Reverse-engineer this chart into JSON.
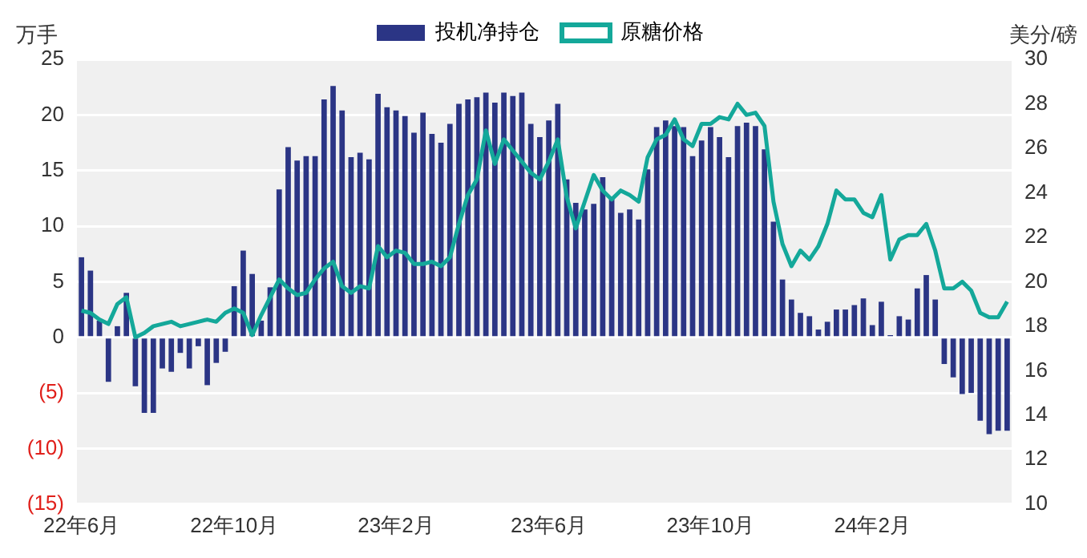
{
  "chart_data": {
    "type": "bar",
    "ylabel": "万手",
    "y2label": "美分/磅",
    "categories": [
      "22年6月",
      null,
      null,
      null,
      null,
      null,
      null,
      null,
      null,
      null,
      null,
      null,
      null,
      null,
      null,
      null,
      null,
      "22年10月",
      null,
      null,
      null,
      null,
      null,
      null,
      null,
      null,
      null,
      null,
      null,
      null,
      null,
      null,
      null,
      null,
      null,
      "23年2月",
      null,
      null,
      null,
      null,
      null,
      null,
      null,
      null,
      null,
      null,
      null,
      null,
      null,
      null,
      null,
      null,
      "23年6月",
      null,
      null,
      null,
      null,
      null,
      null,
      null,
      null,
      null,
      null,
      null,
      null,
      null,
      null,
      null,
      null,
      null,
      "23年10月",
      null,
      null,
      null,
      null,
      null,
      null,
      null,
      null,
      null,
      null,
      null,
      null,
      null,
      null,
      null,
      null,
      null,
      "24年2月",
      null,
      null,
      null,
      null,
      null,
      null,
      null,
      null,
      null,
      null,
      null,
      null,
      null,
      null,
      null
    ],
    "series": [
      {
        "name": "投机净持仓",
        "color": "#2b3585",
        "values": [
          7.2,
          6.0,
          1.5,
          -4.0,
          1.0,
          4.0,
          -4.4,
          -6.8,
          -6.8,
          -2.8,
          -3.1,
          -1.4,
          -2.8,
          -0.8,
          -4.3,
          -2.3,
          -1.3,
          4.6,
          7.8,
          5.7,
          1.5,
          4.5,
          13.3,
          17.1,
          15.9,
          16.3,
          16.3,
          21.4,
          22.6,
          20.4,
          16.2,
          16.6,
          16.0,
          21.9,
          20.7,
          20.4,
          19.9,
          18.4,
          20.2,
          18.3,
          17.5,
          19.2,
          21.0,
          21.4,
          21.6,
          22.0,
          21.1,
          22.0,
          21.7,
          22.0,
          19.2,
          18.0,
          19.5,
          21.0,
          14.2,
          12.1,
          11.5,
          12.0,
          14.4,
          12.6,
          11.2,
          11.5,
          10.6,
          15.1,
          18.9,
          19.5,
          19.0,
          18.9,
          16.3,
          17.7,
          18.9,
          18.0,
          16.2,
          19.0,
          19.3,
          19.0,
          16.9,
          10.4,
          5.2,
          3.4,
          2.2,
          1.9,
          0.7,
          1.4,
          2.5,
          2.5,
          2.9,
          3.5,
          1.1,
          3.2,
          0.2,
          1.9,
          1.6,
          4.4,
          5.6,
          3.4,
          -2.4,
          -3.6,
          -5.1,
          -5.0,
          -7.5,
          -8.7,
          -8.4,
          -8.4
        ]
      },
      {
        "name": "原糖价格",
        "type": "line",
        "axis": "y2",
        "color": "#14a89a",
        "values": [
          18.7,
          18.6,
          18.3,
          18.1,
          19.0,
          19.3,
          17.5,
          17.7,
          18.0,
          18.1,
          18.2,
          18.0,
          18.1,
          18.2,
          18.3,
          18.2,
          18.6,
          18.8,
          18.6,
          17.6,
          18.5,
          19.3,
          20.1,
          19.7,
          19.4,
          19.5,
          20.1,
          20.6,
          20.9,
          19.8,
          19.5,
          19.8,
          19.7,
          21.6,
          21.1,
          21.4,
          21.3,
          20.8,
          20.8,
          20.9,
          20.7,
          21.1,
          22.6,
          23.9,
          24.6,
          26.8,
          25.3,
          26.4,
          25.9,
          25.4,
          24.9,
          24.6,
          25.4,
          26.4,
          23.8,
          22.4,
          23.6,
          24.8,
          24.1,
          23.7,
          24.1,
          23.9,
          23.6,
          25.6,
          26.4,
          26.6,
          27.3,
          26.4,
          26.1,
          27.1,
          27.1,
          27.4,
          27.3,
          28.0,
          27.5,
          27.6,
          27.0,
          23.6,
          21.7,
          20.7,
          21.4,
          21.0,
          21.6,
          22.6,
          24.1,
          23.7,
          23.7,
          23.1,
          22.9,
          23.9,
          21.0,
          21.9,
          22.1,
          22.1,
          22.6,
          21.4,
          19.7,
          19.7,
          20.0,
          19.6,
          18.6,
          18.4,
          18.4,
          19.1
        ]
      }
    ],
    "ylim": [
      -15,
      25
    ],
    "yticks": [
      {
        "value": -15,
        "label": "(15)"
      },
      {
        "value": -10,
        "label": "(10)"
      },
      {
        "value": -5,
        "label": "(5)"
      },
      0,
      5,
      10,
      15,
      20,
      25
    ],
    "y2lim": [
      10,
      30
    ],
    "y2ticks": [
      10,
      12,
      14,
      16,
      18,
      20,
      22,
      24,
      26,
      28,
      30
    ],
    "grid": "y",
    "legend": "top"
  }
}
